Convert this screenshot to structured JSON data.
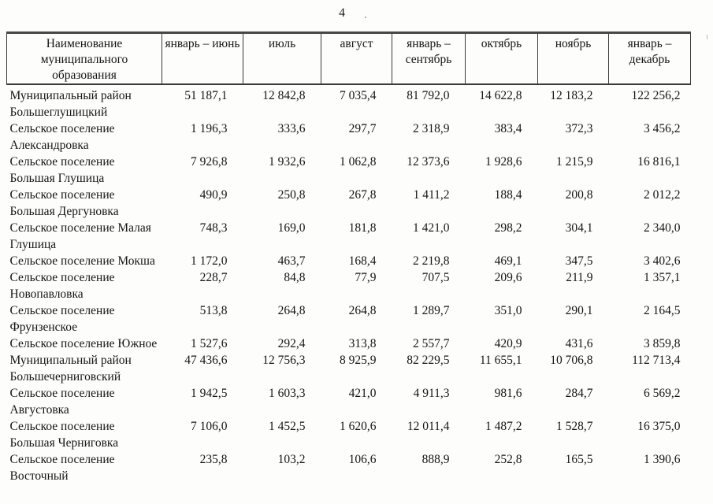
{
  "page": {
    "number": "4"
  },
  "table": {
    "headers": [
      "Наименование муниципального образования",
      "январь – июнь",
      "июль",
      "август",
      "январь – сентябрь",
      "октябрь",
      "ноябрь",
      "январь – декабрь"
    ],
    "rows": [
      {
        "name_lines": [
          "Муниципальный район",
          "Большеглушицкий"
        ],
        "values": [
          "51 187,1",
          "12 842,8",
          "7 035,4",
          "81 792,0",
          "14 622,8",
          "12 183,2",
          "122 256,2"
        ]
      },
      {
        "name_lines": [
          "Сельское поселение",
          "Александровка"
        ],
        "values": [
          "1 196,3",
          "333,6",
          "297,7",
          "2 318,9",
          "383,4",
          "372,3",
          "3 456,2"
        ]
      },
      {
        "name_lines": [
          "Сельское поселение",
          "Большая Глушица"
        ],
        "values": [
          "7 926,8",
          "1 932,6",
          "1 062,8",
          "12 373,6",
          "1 928,6",
          "1 215,9",
          "16 816,1"
        ]
      },
      {
        "name_lines": [
          "Сельское поселение",
          "Большая Дергуновка"
        ],
        "values": [
          "490,9",
          "250,8",
          "267,8",
          "1 411,2",
          "188,4",
          "200,8",
          "2 012,2"
        ]
      },
      {
        "name_lines": [
          "Сельское поселение Малая",
          "Глушица"
        ],
        "values": [
          "748,3",
          "169,0",
          "181,8",
          "1 421,0",
          "298,2",
          "304,1",
          "2 340,0"
        ]
      },
      {
        "name_lines": [
          "Сельское поселение Мокша"
        ],
        "values": [
          "1 172,0",
          "463,7",
          "168,4",
          "2 219,8",
          "469,1",
          "347,5",
          "3 402,6"
        ]
      },
      {
        "name_lines": [
          "Сельское поселение",
          "Новопавловка"
        ],
        "values": [
          "228,7",
          "84,8",
          "77,9",
          "707,5",
          "209,6",
          "211,9",
          "1 357,1"
        ]
      },
      {
        "name_lines": [
          "Сельское поселение",
          "Фрунзенское"
        ],
        "values": [
          "513,8",
          "264,8",
          "264,8",
          "1 289,7",
          "351,0",
          "290,1",
          "2 164,5"
        ]
      },
      {
        "name_lines": [
          "Сельское поселение Южное"
        ],
        "values": [
          "1 527,6",
          "292,4",
          "313,8",
          "2 557,7",
          "420,9",
          "431,6",
          "3 859,8"
        ]
      },
      {
        "name_lines": [
          "Муниципальный район",
          "Большечерниговский"
        ],
        "values": [
          "47 436,6",
          "12 756,3",
          "8 925,9",
          "82 229,5",
          "11 655,1",
          "10 706,8",
          "112 713,4"
        ]
      },
      {
        "name_lines": [
          "Сельское поселение",
          "Августовка"
        ],
        "values": [
          "1 942,5",
          "1 603,3",
          "421,0",
          "4 911,3",
          "981,6",
          "284,7",
          "6 569,2"
        ]
      },
      {
        "name_lines": [
          "Сельское поселение",
          "Большая Черниговка"
        ],
        "values": [
          "7 106,0",
          "1 452,5",
          "1 620,6",
          "12 011,4",
          "1 487,2",
          "1 528,7",
          "16 375,0"
        ]
      },
      {
        "name_lines": [
          "Сельское поселение",
          "Восточный"
        ],
        "values": [
          "235,8",
          "103,2",
          "106,6",
          "888,9",
          "252,8",
          "165,5",
          "1 390,6"
        ]
      }
    ]
  }
}
